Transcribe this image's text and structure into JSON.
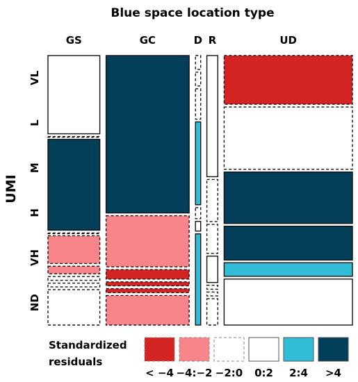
{
  "chart_data": {
    "type": "mosaic",
    "title": "Blue space location type",
    "xlabel": "",
    "ylabel": "UMI",
    "x_categories": [
      "GS",
      "GC",
      "D",
      "R",
      "UD"
    ],
    "y_categories": [
      "VL",
      "L",
      "M",
      "H",
      "VH",
      "ND"
    ],
    "residual_classes": [
      {
        "label": "< −4",
        "color": "#d42323",
        "border": "dashed"
      },
      {
        "label": "−4:−2",
        "color": "#f8858a",
        "border": "dashed"
      },
      {
        "label": "−2:0",
        "color": "#ffffff",
        "border": "dashed"
      },
      {
        "label": "0:2",
        "color": "#ffffff",
        "border": "solid"
      },
      {
        "label": "2:4",
        "color": "#31bcd7",
        "border": "solid"
      },
      {
        "label": ">4",
        "color": "#043f5a",
        "border": "solid"
      }
    ],
    "legend": {
      "title_lines": [
        "Standardized",
        "residuals"
      ],
      "position": "bottom"
    },
    "columns": [
      {
        "category": "GS",
        "width": 0.186,
        "cells": [
          {
            "umi": "VL",
            "proportion": 0.31,
            "residual_class": "0:2"
          },
          {
            "umi": "L",
            "proportion": 0.0,
            "residual_class": "−2:0"
          },
          {
            "umi": "M",
            "proportion": 0.36,
            "residual_class": ">4"
          },
          {
            "umi": "H",
            "proportion": 0.0,
            "residual_class": "−2:0"
          },
          {
            "umi": "VH",
            "proportion": 0.11,
            "residual_class": "−4:−2"
          },
          {
            "umi": "VH",
            "proportion": 0.03,
            "residual_class": "−4:−2"
          },
          {
            "umi": "VH",
            "proportion": 0.015,
            "residual_class": "−2:0"
          },
          {
            "umi": "VH",
            "proportion": 0.015,
            "residual_class": "−2:0"
          },
          {
            "umi": "ND",
            "proportion": 0.14,
            "residual_class": "−2:0"
          }
        ]
      },
      {
        "category": "GC",
        "width": 0.295,
        "cells": [
          {
            "umi": "VL",
            "proportion": 0.585,
            "residual_class": ">4"
          },
          {
            "umi": "H",
            "proportion": 0.19,
            "residual_class": "−4:−2"
          },
          {
            "umi": "VH",
            "proportion": 0.035,
            "residual_class": "< −4"
          },
          {
            "umi": "VH",
            "proportion": 0.015,
            "residual_class": "< −4"
          },
          {
            "umi": "VH",
            "proportion": 0.015,
            "residual_class": "< −4"
          },
          {
            "umi": "ND",
            "proportion": 0.11,
            "residual_class": "−4:−2"
          }
        ]
      },
      {
        "category": "D",
        "width": 0.023,
        "cells": [
          {
            "umi": "VL",
            "proportion": 0.05,
            "residual_class": "−2:0"
          },
          {
            "umi": "VL",
            "proportion": 0.05,
            "residual_class": "−2:0"
          },
          {
            "umi": "L",
            "proportion": 0.11,
            "residual_class": "−2:0"
          },
          {
            "umi": "M",
            "proportion": 0.3,
            "residual_class": "2:4"
          },
          {
            "umi": "H",
            "proportion": 0.04,
            "residual_class": "−2:0"
          },
          {
            "umi": "H",
            "proportion": 0.035,
            "residual_class": "0:2"
          },
          {
            "umi": "VH",
            "proportion": 0.33,
            "residual_class": "2:4"
          }
        ]
      },
      {
        "category": "R",
        "width": 0.043,
        "cells": [
          {
            "umi": "VL",
            "proportion": 0.46,
            "residual_class": "0:2"
          },
          {
            "umi": "H",
            "proportion": 0.16,
            "residual_class": "−2:0"
          },
          {
            "umi": "VH",
            "proportion": 0.11,
            "residual_class": "−2:0"
          },
          {
            "umi": "VH",
            "proportion": 0.1,
            "residual_class": "0:2"
          },
          {
            "umi": "ND",
            "proportion": 0.015,
            "residual_class": "−2:0"
          },
          {
            "umi": "ND",
            "proportion": 0.015,
            "residual_class": "−2:0"
          },
          {
            "umi": "ND",
            "proportion": 0.1,
            "residual_class": "−2:0"
          }
        ]
      },
      {
        "category": "UD",
        "width": 0.453,
        "cells": [
          {
            "umi": "VL",
            "proportion": 0.18,
            "residual_class": "< −4"
          },
          {
            "umi": "L",
            "proportion": 0.23,
            "residual_class": "−2:0"
          },
          {
            "umi": "M",
            "proportion": 0.19,
            "residual_class": ">4"
          },
          {
            "umi": "H",
            "proportion": 0.125,
            "residual_class": ">4"
          },
          {
            "umi": "VH",
            "proportion": 0.05,
            "residual_class": "2:4"
          },
          {
            "umi": "ND",
            "proportion": 0.17,
            "residual_class": "0:2"
          }
        ]
      }
    ]
  }
}
